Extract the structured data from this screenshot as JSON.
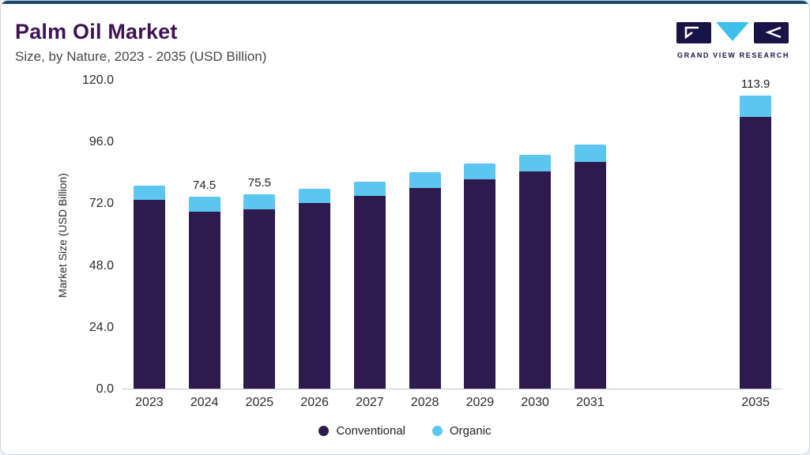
{
  "header": {
    "title": "Palm Oil Market",
    "subtitle": "Size, by Nature, 2023 - 2035 (USD Billion)",
    "logo_text": "GRAND VIEW RESEARCH"
  },
  "colors": {
    "accent_top": "#16486e",
    "title": "#3e1254",
    "conventional": "#2e1a4d",
    "organic": "#5cc6f0",
    "logo_navy": "#1a1446",
    "logo_cyan": "#3fc0ec"
  },
  "chart_data": {
    "type": "bar",
    "stacked": true,
    "title": "Palm Oil Market",
    "subtitle": "Size, by Nature, 2023 - 2035 (USD Billion)",
    "ylabel": "Market Size (USD Billion)",
    "ylim": [
      0,
      120
    ],
    "ytick_labels": [
      "0.0",
      "24.0",
      "48.0",
      "72.0",
      "96.0",
      "120.0"
    ],
    "ytick_values": [
      0,
      24,
      48,
      72,
      96,
      120
    ],
    "grid": false,
    "legend_position": "bottom",
    "series": [
      {
        "name": "Conventional",
        "color": "#2e1a4d"
      },
      {
        "name": "Organic",
        "color": "#5cc6f0"
      }
    ],
    "bars": [
      {
        "year": "2023",
        "conventional": 73.4,
        "organic": 5.4,
        "total": 78.8,
        "label": ""
      },
      {
        "year": "2024",
        "conventional": 68.9,
        "organic": 5.6,
        "total": 74.5,
        "label": "74.5"
      },
      {
        "year": "2025",
        "conventional": 69.8,
        "organic": 5.7,
        "total": 75.5,
        "label": "75.5"
      },
      {
        "year": "2026",
        "conventional": 72.2,
        "organic": 5.3,
        "total": 77.5,
        "label": ""
      },
      {
        "year": "2027",
        "conventional": 74.8,
        "organic": 5.6,
        "total": 80.4,
        "label": ""
      },
      {
        "year": "2028",
        "conventional": 78.0,
        "organic": 6.0,
        "total": 84.0,
        "label": ""
      },
      {
        "year": "2029",
        "conventional": 81.2,
        "organic": 6.3,
        "total": 87.5,
        "label": ""
      },
      {
        "year": "2030",
        "conventional": 84.5,
        "organic": 6.5,
        "total": 91.0,
        "label": ""
      },
      {
        "year": "2031",
        "conventional": 88.0,
        "organic": 6.8,
        "total": 94.8,
        "label": ""
      },
      {
        "year": "",
        "spacer": true
      },
      {
        "year": "",
        "spacer": true
      },
      {
        "year": "2035",
        "conventional": 105.6,
        "organic": 8.3,
        "total": 113.9,
        "label": "113.9"
      }
    ]
  }
}
